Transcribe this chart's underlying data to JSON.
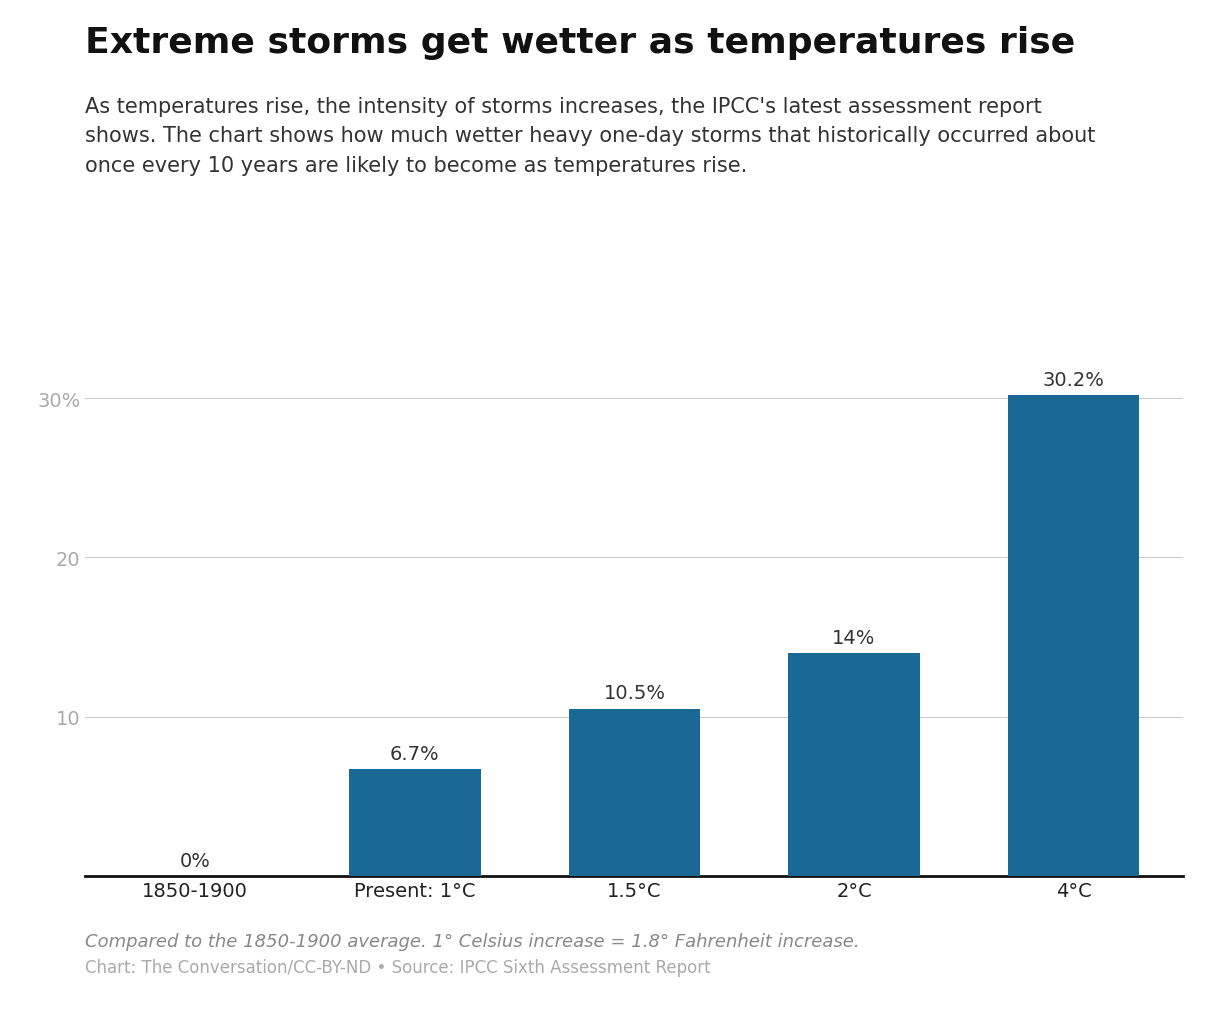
{
  "title": "Extreme storms get wetter as temperatures rise",
  "subtitle": "As temperatures rise, the intensity of storms increases, the IPCC's latest assessment report\nshows. The chart shows how much wetter heavy one-day storms that historically occurred about\nonce every 10 years are likely to become as temperatures rise.",
  "categories": [
    "1850-1900",
    "Present: 1°C",
    "1.5°C",
    "2°C",
    "4°C"
  ],
  "values": [
    0,
    6.7,
    10.5,
    14,
    30.2
  ],
  "labels": [
    "0%",
    "6.7%",
    "10.5%",
    "14%",
    "30.2%"
  ],
  "bar_color": "#1a6896",
  "ylim": [
    0,
    32
  ],
  "yticks": [
    10,
    20,
    30
  ],
  "ytick_labels": [
    "10",
    "20",
    "30%"
  ],
  "footnote_italic": "Compared to the 1850-1900 average. 1° Celsius increase = 1.8° Fahrenheit increase.",
  "footnote_regular": "Chart: The Conversation/CC-BY-ND • Source: IPCC Sixth Assessment Report",
  "background_color": "#ffffff",
  "title_fontsize": 26,
  "subtitle_fontsize": 15,
  "axis_label_fontsize": 14,
  "bar_label_fontsize": 14,
  "footnote_fontsize": 13
}
